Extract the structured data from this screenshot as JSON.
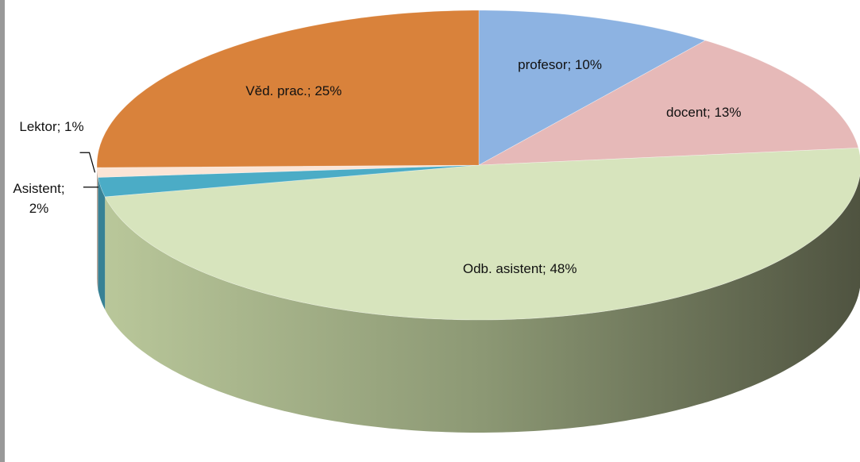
{
  "chart_data": {
    "type": "pie",
    "categories": [
      "profesor",
      "docent",
      "Odb. asistent",
      "Asistent",
      "Lektor",
      "Věd. prac."
    ],
    "values": [
      10,
      13,
      48,
      2,
      1,
      25
    ],
    "value_labels": [
      "profesor; 10%",
      "docent; 13%",
      "Odb. asistent; 48%",
      "Asistent; 2%",
      "Lektor; 1%",
      "Věd. prac.; 25%"
    ],
    "colors": [
      "#8db3e2",
      "#e6b9b8",
      "#d7e4bd",
      "#4bacc6",
      "#fbe5d6",
      "#d9823b"
    ]
  }
}
